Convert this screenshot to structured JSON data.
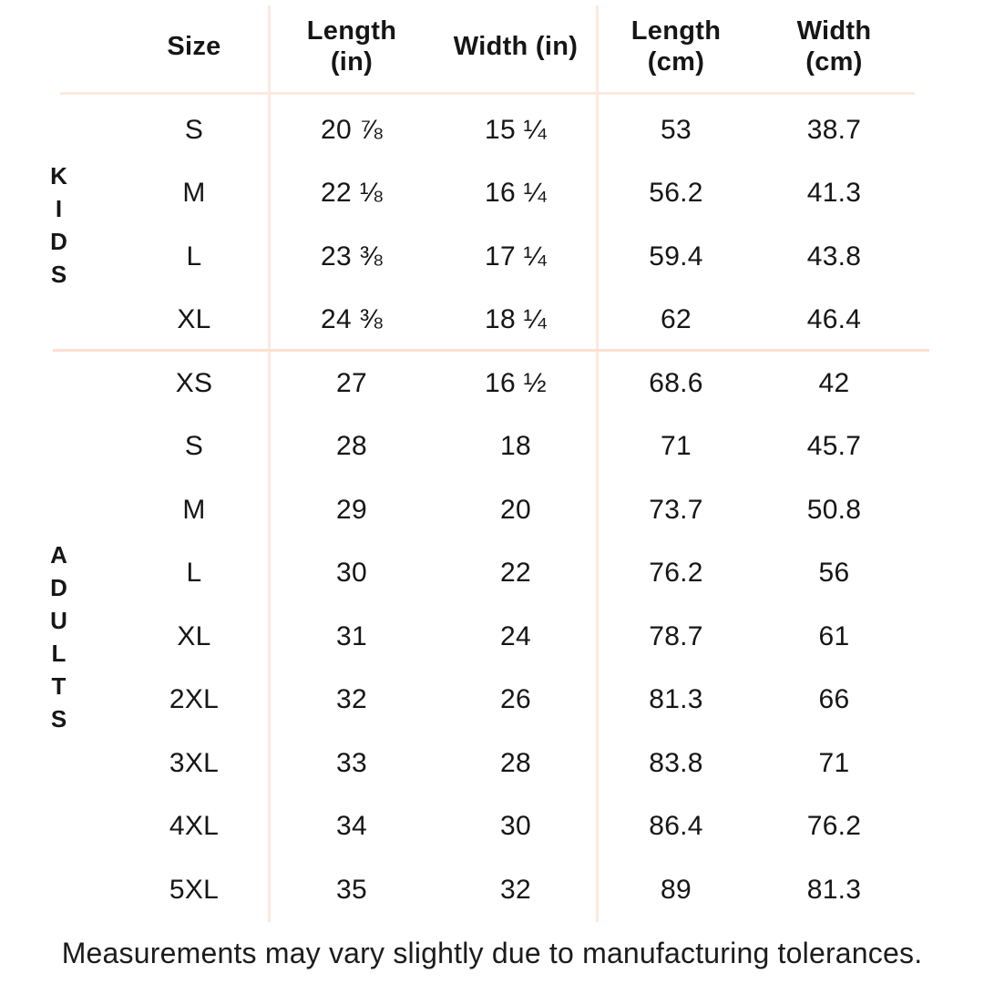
{
  "colors": {
    "grid_line": "#fbe9e0",
    "section_divider": "#f9e0d2",
    "text": "#161616",
    "background": "#ffffff"
  },
  "chart_data": {
    "type": "table",
    "columns": [
      "Size",
      "Length\n(in)",
      "Width (in)",
      "Length\n(cm)",
      "Width\n(cm)"
    ],
    "sections": [
      {
        "group": "KIDS",
        "group_display": "K\nI\nD\nS",
        "rows": [
          {
            "size": "S",
            "len_in": "20 ⅞",
            "wid_in": "15 ¼",
            "len_cm": "53",
            "wid_cm": "38.7"
          },
          {
            "size": "M",
            "len_in": "22 ⅛",
            "wid_in": "16 ¼",
            "len_cm": "56.2",
            "wid_cm": "41.3"
          },
          {
            "size": "L",
            "len_in": "23 ⅜",
            "wid_in": "17 ¼",
            "len_cm": "59.4",
            "wid_cm": "43.8"
          },
          {
            "size": "XL",
            "len_in": "24 ⅜",
            "wid_in": "18 ¼",
            "len_cm": "62",
            "wid_cm": "46.4"
          }
        ]
      },
      {
        "group": "ADULTS",
        "group_display": "A\nD\nU\nL\nT\nS",
        "rows": [
          {
            "size": "XS",
            "len_in": "27",
            "wid_in": "16 ½",
            "len_cm": "68.6",
            "wid_cm": "42"
          },
          {
            "size": "S",
            "len_in": "28",
            "wid_in": "18",
            "len_cm": "71",
            "wid_cm": "45.7"
          },
          {
            "size": "M",
            "len_in": "29",
            "wid_in": "20",
            "len_cm": "73.7",
            "wid_cm": "50.8"
          },
          {
            "size": "L",
            "len_in": "30",
            "wid_in": "22",
            "len_cm": "76.2",
            "wid_cm": "56"
          },
          {
            "size": "XL",
            "len_in": "31",
            "wid_in": "24",
            "len_cm": "78.7",
            "wid_cm": "61"
          },
          {
            "size": "2XL",
            "len_in": "32",
            "wid_in": "26",
            "len_cm": "81.3",
            "wid_cm": "66"
          },
          {
            "size": "3XL",
            "len_in": "33",
            "wid_in": "28",
            "len_cm": "83.8",
            "wid_cm": "71"
          },
          {
            "size": "4XL",
            "len_in": "34",
            "wid_in": "30",
            "len_cm": "86.4",
            "wid_cm": "76.2"
          },
          {
            "size": "5XL",
            "len_in": "35",
            "wid_in": "32",
            "len_cm": "89",
            "wid_cm": "81.3"
          }
        ]
      }
    ],
    "footnote": "Measurements may vary slightly due to manufacturing tolerances."
  }
}
